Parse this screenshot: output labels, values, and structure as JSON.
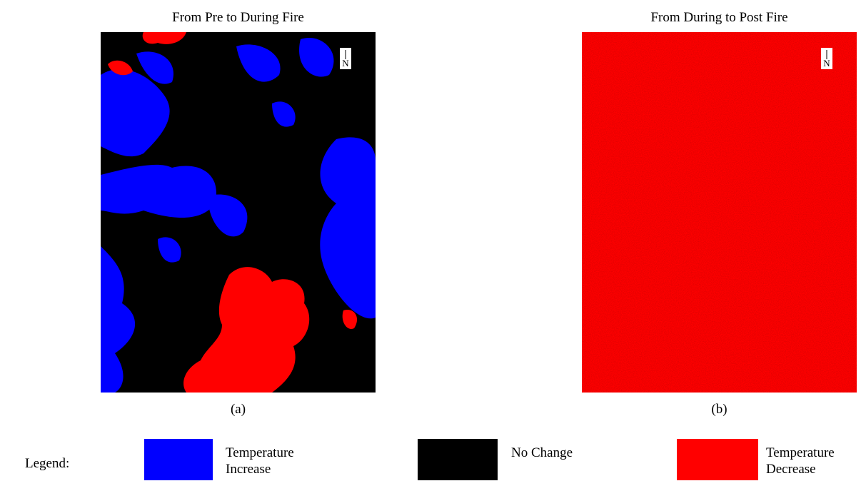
{
  "panels": [
    {
      "title": "From Pre to During Fire",
      "label": "(a)",
      "north": "N"
    },
    {
      "title": "From During to Post Fire",
      "label": "(b)",
      "north": "N"
    }
  ],
  "legend": {
    "title": "Legend:",
    "items": [
      {
        "label": "Temperature Increase",
        "color": "#0000ff"
      },
      {
        "label": "No Change",
        "color": "#000000"
      },
      {
        "label": "Temperature Decrease",
        "color": "#ff0000"
      }
    ]
  }
}
